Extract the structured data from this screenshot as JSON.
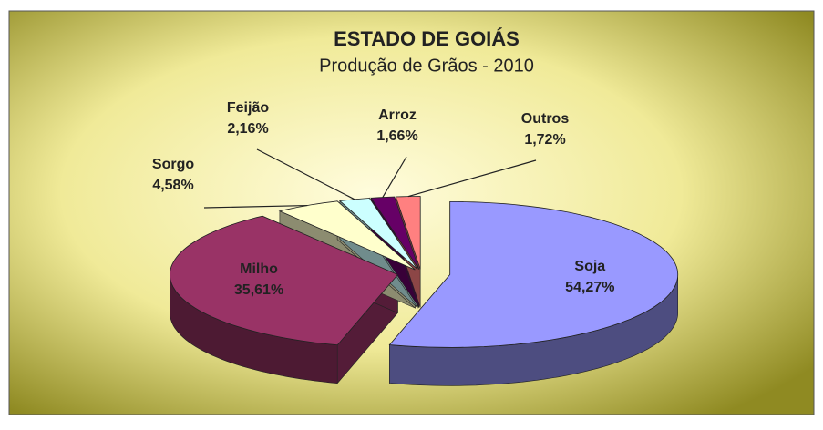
{
  "chart_data": {
    "type": "pie3d",
    "title": "ESTADO DE GOIÁS",
    "subtitle": "Produção de Grãos - 2010",
    "categories": [
      "Soja",
      "Milho",
      "Sorgo",
      "Feijão",
      "Arroz",
      "Outros"
    ],
    "values": [
      54.27,
      35.61,
      4.58,
      2.16,
      1.66,
      1.72
    ],
    "value_labels": [
      "54,27%",
      "35,61%",
      "4,58%",
      "2,16%",
      "1,66%",
      "1,72%"
    ],
    "colors": [
      "#9999ff",
      "#993366",
      "#ffffcc",
      "#ccffff",
      "#660066",
      "#ff8080"
    ]
  }
}
